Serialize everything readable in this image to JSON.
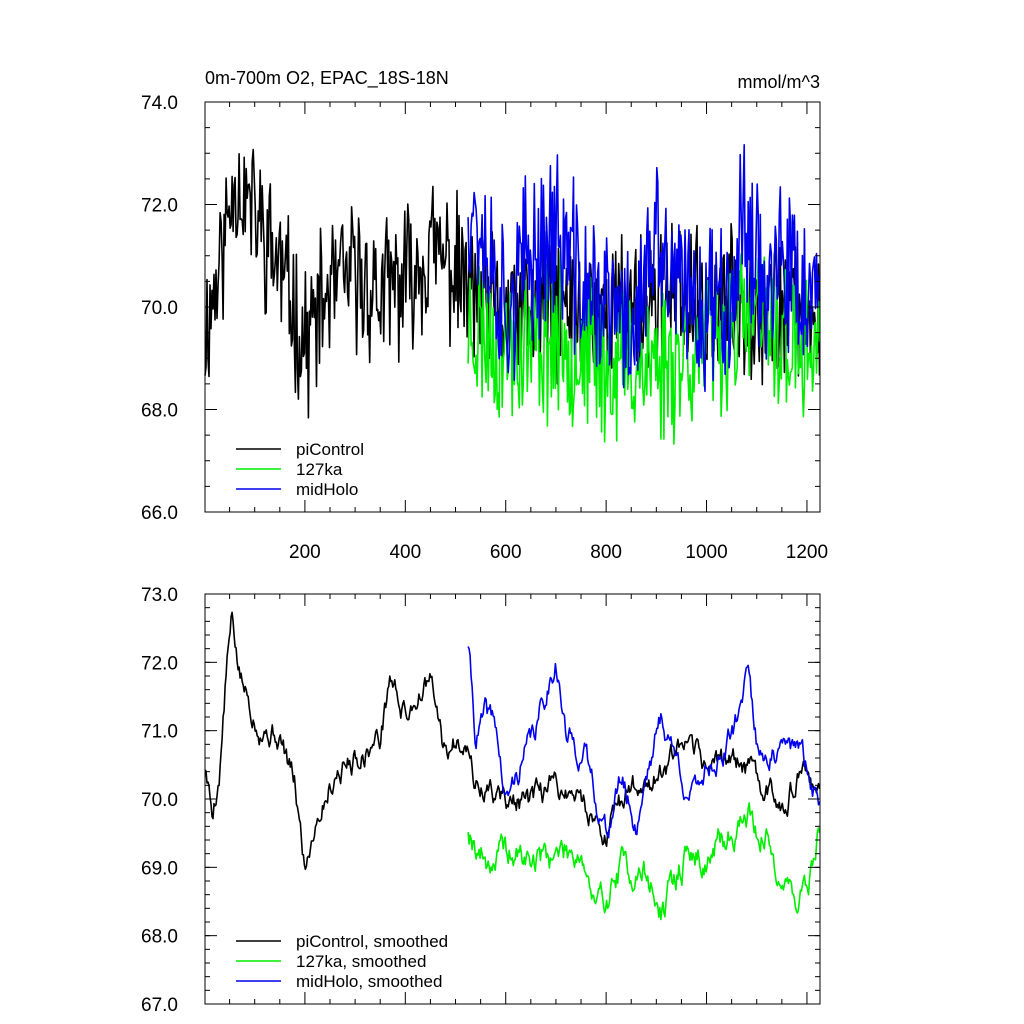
{
  "chart_data": [
    {
      "type": "line",
      "title": "0m-700m O2, EPAC_18S-18N",
      "units_label": "mmol/m^3",
      "xlim": [
        1,
        1226
      ],
      "ylim": [
        66.0,
        74.0
      ],
      "x_ticks": [
        200,
        400,
        600,
        800,
        1000,
        1200
      ],
      "y_ticks": [
        66.0,
        68.0,
        70.0,
        72.0,
        74.0
      ],
      "y_tick_labels": [
        "66.0",
        "68.0",
        "70.0",
        "72.0",
        "74.0"
      ],
      "x_tick_labels": [
        "200",
        "400",
        "600",
        "800",
        "1000",
        "1200"
      ],
      "grid": false,
      "legend_position": "bottom-left",
      "series": [
        {
          "name": "piControl",
          "color": "#000000",
          "x_range": [
            1,
            1226
          ],
          "mean": 70.4,
          "amp": 2.4,
          "seed": 11,
          "anchors": [
            [
              1,
              69.5
            ],
            [
              40,
              71.3
            ],
            [
              60,
              72.6
            ],
            [
              100,
              71.8
            ],
            [
              150,
              70.8
            ],
            [
              200,
              69.3
            ],
            [
              250,
              70.3
            ],
            [
              300,
              70.6
            ],
            [
              350,
              70.2
            ],
            [
              400,
              70.5
            ],
            [
              450,
              71.1
            ],
            [
              500,
              70.7
            ],
            [
              550,
              70.0
            ],
            [
              600,
              69.8
            ],
            [
              700,
              70.0
            ],
            [
              800,
              69.9
            ],
            [
              900,
              70.2
            ],
            [
              1000,
              70.0
            ],
            [
              1100,
              70.1
            ],
            [
              1200,
              69.8
            ],
            [
              1226,
              69.8
            ]
          ]
        },
        {
          "name": "127ka",
          "color": "#00ee00",
          "x_range": [
            525,
            1226
          ],
          "mean": 69.2,
          "amp": 2.6,
          "seed": 23,
          "anchors": [
            [
              525,
              69.7
            ],
            [
              600,
              69.2
            ],
            [
              700,
              69.4
            ],
            [
              800,
              68.9
            ],
            [
              900,
              68.9
            ],
            [
              1000,
              69.3
            ],
            [
              1100,
              69.8
            ],
            [
              1200,
              69.0
            ],
            [
              1226,
              69.6
            ]
          ]
        },
        {
          "name": "midHolo",
          "color": "#0000ee",
          "x_range": [
            525,
            1226
          ],
          "mean": 70.5,
          "amp": 2.8,
          "seed": 37,
          "anchors": [
            [
              525,
              72.3
            ],
            [
              560,
              71.3
            ],
            [
              600,
              69.9
            ],
            [
              650,
              71.0
            ],
            [
              700,
              71.5
            ],
            [
              750,
              70.4
            ],
            [
              800,
              70.0
            ],
            [
              850,
              69.6
            ],
            [
              900,
              71.1
            ],
            [
              950,
              70.2
            ],
            [
              1000,
              70.0
            ],
            [
              1050,
              70.6
            ],
            [
              1080,
              71.8
            ],
            [
              1120,
              70.4
            ],
            [
              1160,
              70.6
            ],
            [
              1226,
              69.9
            ]
          ]
        }
      ]
    },
    {
      "type": "line",
      "title": "",
      "xlim": [
        1,
        1226
      ],
      "ylim": [
        67.0,
        73.0
      ],
      "x_ticks": [
        200,
        400,
        600,
        800,
        1000,
        1200
      ],
      "y_ticks": [
        67.0,
        68.0,
        69.0,
        70.0,
        71.0,
        72.0,
        73.0
      ],
      "y_tick_labels": [
        "67.0",
        "68.0",
        "69.0",
        "70.0",
        "71.0",
        "72.0",
        "73.0"
      ],
      "grid": false,
      "legend_position": "bottom-left",
      "series": [
        {
          "name": "piControl, smoothed",
          "color": "#000000",
          "x_range": [
            1,
            1226
          ],
          "amp": 0.5,
          "seed": 5,
          "anchors": [
            [
              1,
              70.5
            ],
            [
              15,
              69.8
            ],
            [
              30,
              70.4
            ],
            [
              45,
              72.0
            ],
            [
              55,
              72.6
            ],
            [
              70,
              71.8
            ],
            [
              90,
              71.4
            ],
            [
              110,
              71.1
            ],
            [
              150,
              70.9
            ],
            [
              180,
              70.2
            ],
            [
              200,
              69.0
            ],
            [
              220,
              69.7
            ],
            [
              260,
              70.4
            ],
            [
              300,
              70.6
            ],
            [
              350,
              70.9
            ],
            [
              370,
              71.8
            ],
            [
              400,
              71.2
            ],
            [
              430,
              71.6
            ],
            [
              450,
              71.7
            ],
            [
              480,
              70.6
            ],
            [
              520,
              71.0
            ],
            [
              540,
              70.2
            ],
            [
              600,
              70.0
            ],
            [
              650,
              69.9
            ],
            [
              700,
              70.2
            ],
            [
              750,
              70.0
            ],
            [
              800,
              69.5
            ],
            [
              850,
              70.2
            ],
            [
              900,
              70.3
            ],
            [
              950,
              70.7
            ],
            [
              1000,
              70.5
            ],
            [
              1050,
              70.6
            ],
            [
              1100,
              70.3
            ],
            [
              1150,
              70.0
            ],
            [
              1200,
              70.4
            ],
            [
              1226,
              69.9
            ]
          ]
        },
        {
          "name": "127ka, smoothed",
          "color": "#00ee00",
          "x_range": [
            525,
            1226
          ],
          "amp": 0.6,
          "seed": 19,
          "anchors": [
            [
              525,
              69.6
            ],
            [
              560,
              69.1
            ],
            [
              600,
              69.2
            ],
            [
              650,
              69.1
            ],
            [
              700,
              69.2
            ],
            [
              750,
              69.3
            ],
            [
              780,
              68.3
            ],
            [
              830,
              69.0
            ],
            [
              880,
              68.9
            ],
            [
              910,
              68.3
            ],
            [
              960,
              69.2
            ],
            [
              1000,
              69.1
            ],
            [
              1040,
              69.4
            ],
            [
              1080,
              69.8
            ],
            [
              1120,
              69.4
            ],
            [
              1160,
              68.7
            ],
            [
              1200,
              68.6
            ],
            [
              1226,
              69.6
            ]
          ]
        },
        {
          "name": "midHolo, smoothed",
          "color": "#0000ee",
          "x_range": [
            525,
            1226
          ],
          "amp": 0.5,
          "seed": 41,
          "anchors": [
            [
              525,
              72.3
            ],
            [
              540,
              70.9
            ],
            [
              560,
              71.2
            ],
            [
              580,
              71.1
            ],
            [
              600,
              69.9
            ],
            [
              630,
              70.5
            ],
            [
              660,
              71.0
            ],
            [
              700,
              72.1
            ],
            [
              720,
              70.9
            ],
            [
              760,
              70.6
            ],
            [
              800,
              69.5
            ],
            [
              830,
              70.3
            ],
            [
              860,
              69.6
            ],
            [
              880,
              70.4
            ],
            [
              910,
              71.2
            ],
            [
              940,
              70.6
            ],
            [
              970,
              70.0
            ],
            [
              1000,
              70.5
            ],
            [
              1040,
              70.7
            ],
            [
              1070,
              71.3
            ],
            [
              1080,
              72.2
            ],
            [
              1100,
              70.8
            ],
            [
              1140,
              70.6
            ],
            [
              1180,
              70.8
            ],
            [
              1226,
              69.9
            ]
          ]
        }
      ]
    }
  ]
}
